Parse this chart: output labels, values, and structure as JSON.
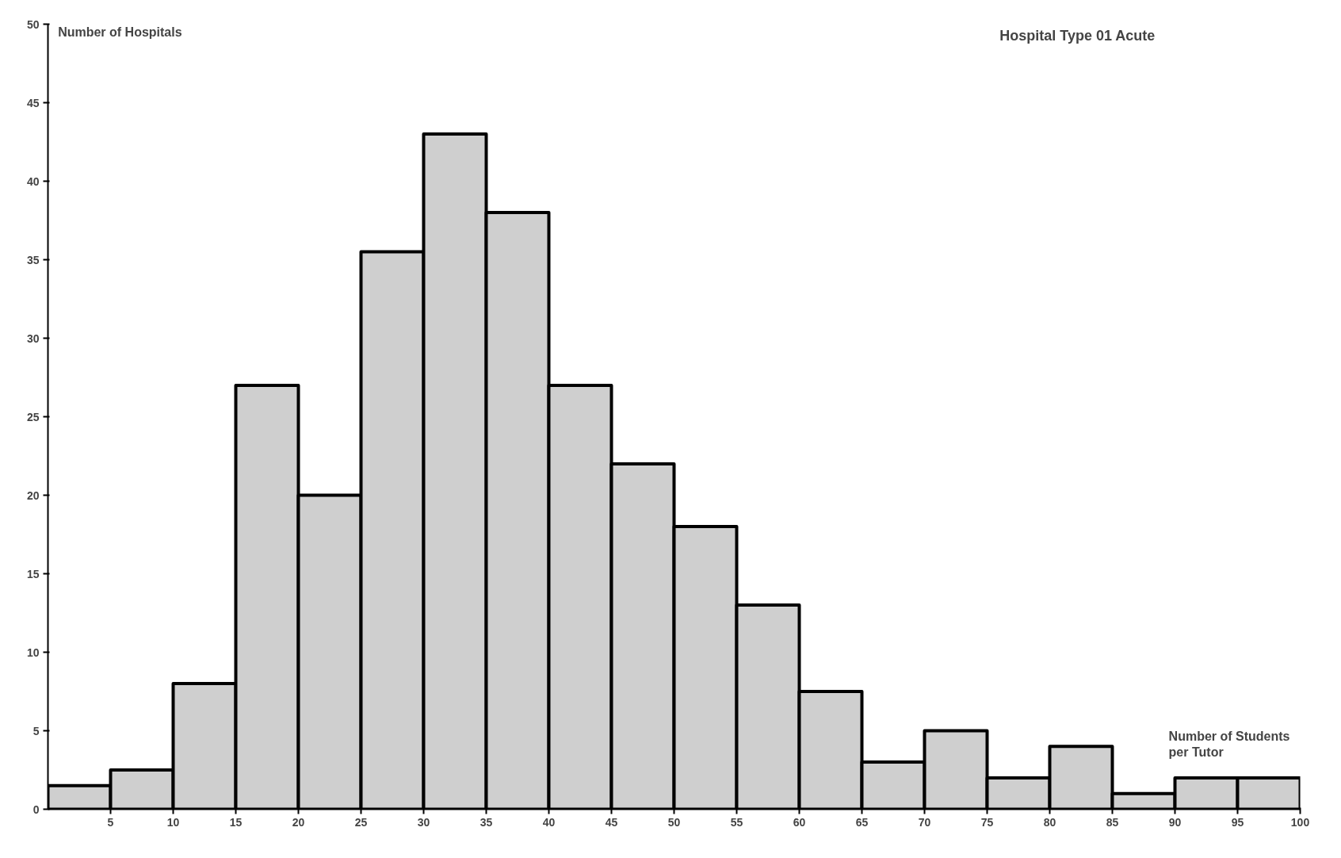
{
  "chart_data": {
    "type": "histogram",
    "title": "Hospital Type 01 Acute",
    "xlabel": "Number of Students per Tutor",
    "ylabel": "Number of Hospitals",
    "bins": [
      0,
      5,
      10,
      15,
      20,
      25,
      30,
      35,
      40,
      45,
      50,
      55,
      60,
      65,
      70,
      75,
      80,
      85,
      90,
      95,
      100
    ],
    "values": [
      1.5,
      2.5,
      8,
      27,
      20,
      35.5,
      43,
      38,
      27,
      22,
      18,
      13,
      7.5,
      3,
      5,
      2,
      4,
      1,
      2,
      2
    ],
    "color": "#cfcfcf",
    "xlim": [
      0,
      100
    ],
    "ylim": [
      0,
      50
    ],
    "xticks": [
      5,
      10,
      15,
      20,
      25,
      30,
      35,
      40,
      45,
      50,
      55,
      60,
      65,
      70,
      75,
      80,
      85,
      90,
      95,
      100
    ],
    "yticks": [
      0,
      5,
      10,
      15,
      20,
      25,
      30,
      35,
      40,
      45,
      50
    ],
    "grid": false
  }
}
